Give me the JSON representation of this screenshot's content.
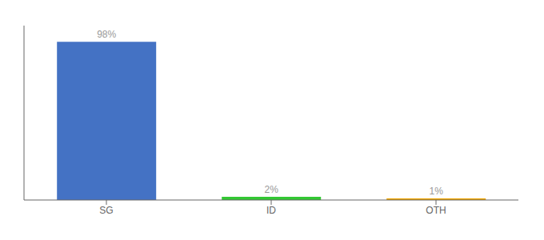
{
  "chart_data": {
    "type": "bar",
    "categories": [
      "SG",
      "ID",
      "OTH"
    ],
    "values": [
      98,
      2,
      1
    ],
    "value_labels": [
      "98%",
      "2%",
      "1%"
    ],
    "colors": [
      "#4472c4",
      "#32c832",
      "#f0a500"
    ],
    "ylim": [
      0,
      108
    ],
    "data_labels": true,
    "tick_labels": "x"
  }
}
